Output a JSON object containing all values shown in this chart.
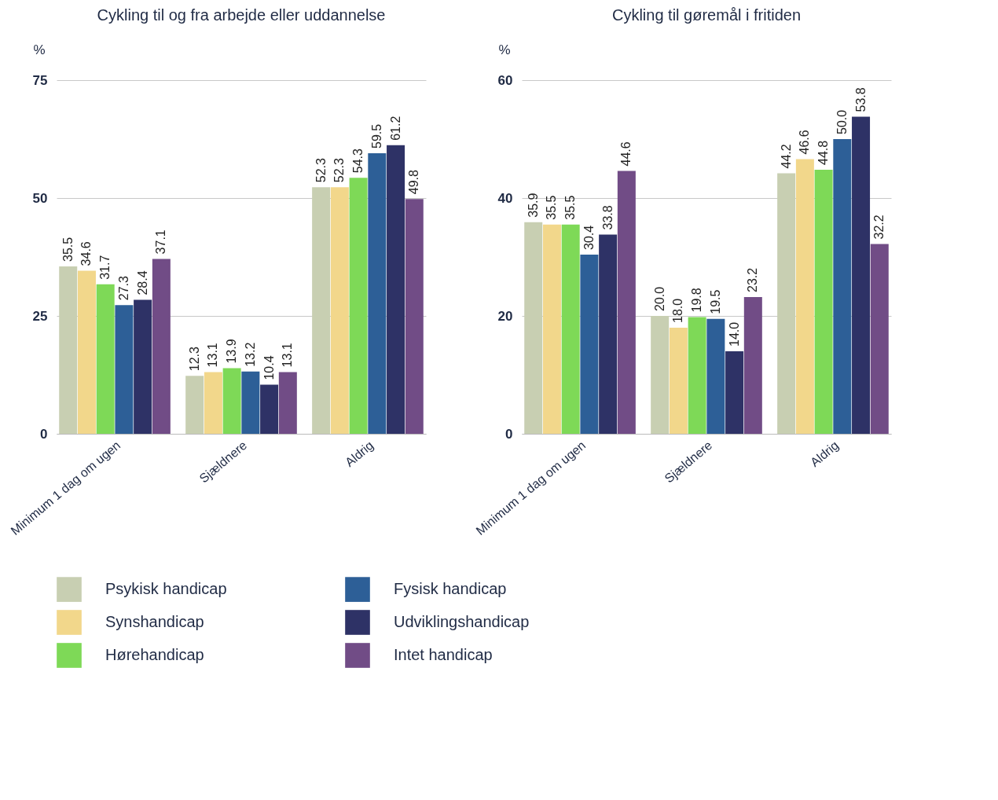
{
  "chart_data": [
    {
      "type": "bar",
      "title": "Cykling til og fra arbejde eller uddannelse",
      "ylabel": "%",
      "categories": [
        "Minimum 1 dag om ugen",
        "Sjældnere",
        "Aldrig"
      ],
      "ylim": [
        0,
        75
      ],
      "yticks": [
        0,
        25,
        50,
        75
      ],
      "grid": "y",
      "legend": "bottom",
      "series": [
        {
          "name": "Psykisk handicap",
          "color": "#c8cfb2",
          "values": [
            35.5,
            12.3,
            52.3
          ],
          "value_labels": [
            "35.5",
            "12.3",
            "52.3"
          ]
        },
        {
          "name": "Synshandicap",
          "color": "#f2d78b",
          "values": [
            34.6,
            13.1,
            52.3
          ],
          "value_labels": [
            "34.6",
            "13.1",
            "52.3"
          ]
        },
        {
          "name": "Hørehandicap",
          "color": "#7ed957",
          "values": [
            31.7,
            13.9,
            54.3
          ],
          "value_labels": [
            "31.7",
            "13.9",
            "54.3"
          ]
        },
        {
          "name": "Fysisk handicap",
          "color": "#2d5f97",
          "values": [
            27.3,
            13.2,
            59.5
          ],
          "value_labels": [
            "27.3",
            "13.2",
            "59.5"
          ]
        },
        {
          "name": "Udviklingshandicap",
          "color": "#2e3266",
          "values": [
            28.4,
            10.4,
            61.2
          ],
          "value_labels": [
            "28.4",
            "10.4",
            "61.2"
          ]
        },
        {
          "name": "Intet handicap",
          "color": "#714c86",
          "values": [
            37.1,
            13.1,
            49.8
          ],
          "value_labels": [
            "37.1",
            "13.1",
            "49.8"
          ]
        }
      ]
    },
    {
      "type": "bar",
      "title": "Cykling til gøremål i fritiden",
      "ylabel": "%",
      "categories": [
        "Minimum 1 dag om ugen",
        "Sjældnere",
        "Aldrig"
      ],
      "ylim": [
        0,
        60
      ],
      "yticks": [
        0,
        20,
        40,
        60
      ],
      "grid": "y",
      "legend": "bottom",
      "series": [
        {
          "name": "Psykisk handicap",
          "color": "#c8cfb2",
          "values": [
            35.9,
            20.0,
            44.2
          ],
          "value_labels": [
            "35.9",
            "20.0",
            "44.2"
          ]
        },
        {
          "name": "Synshandicap",
          "color": "#f2d78b",
          "values": [
            35.5,
            18.0,
            46.6
          ],
          "value_labels": [
            "35.5",
            "18.0",
            "46.6"
          ]
        },
        {
          "name": "Hørehandicap",
          "color": "#7ed957",
          "values": [
            35.5,
            19.8,
            44.8
          ],
          "value_labels": [
            "35.5",
            "19.8",
            "44.8"
          ]
        },
        {
          "name": "Fysisk handicap",
          "color": "#2d5f97",
          "values": [
            30.4,
            19.5,
            50.0
          ],
          "value_labels": [
            "30.4",
            "19.5",
            "50.0"
          ]
        },
        {
          "name": "Udviklingshandicap",
          "color": "#2e3266",
          "values": [
            33.8,
            14.0,
            53.8
          ],
          "value_labels": [
            "33.8",
            "14.0",
            "53.8"
          ]
        },
        {
          "name": "Intet handicap",
          "color": "#714c86",
          "values": [
            44.6,
            23.2,
            32.2
          ],
          "value_labels": [
            "44.6",
            "23.2",
            "32.2"
          ]
        }
      ]
    }
  ]
}
